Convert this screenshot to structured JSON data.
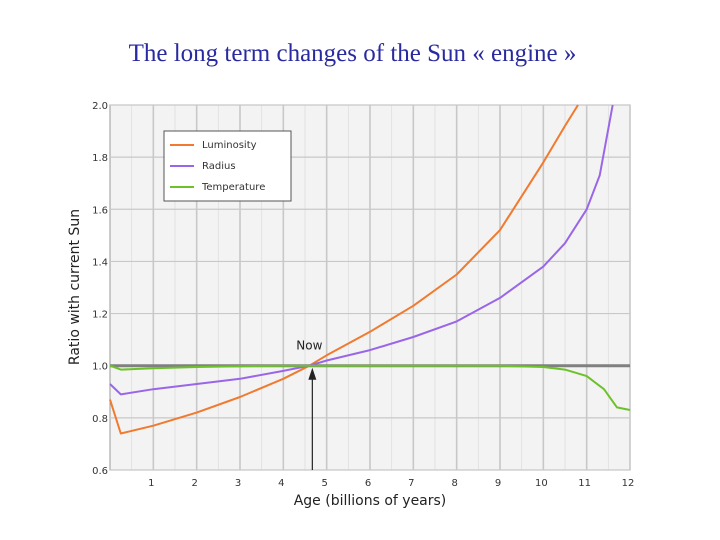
{
  "slide": {
    "title": "The long term changes of the Sun « engine »"
  },
  "chart_data": {
    "type": "line",
    "title": "The long term changes of the Sun « engine »",
    "xlabel": "Age (billions of years)",
    "ylabel": "Ratio with current Sun",
    "xlim": [
      0,
      12
    ],
    "ylim": [
      0.6,
      2.0
    ],
    "x_ticks": [
      1,
      2,
      3,
      4,
      5,
      6,
      7,
      8,
      9,
      10,
      11,
      12
    ],
    "y_ticks": [
      0.6,
      0.8,
      1.0,
      1.2,
      1.4,
      1.6,
      1.8,
      2.0
    ],
    "x_tick_labels": [
      "1",
      "2",
      "3",
      "4",
      "5",
      "6",
      "7",
      "8",
      "9",
      "10",
      "11",
      "12"
    ],
    "y_tick_labels": [
      "0.6",
      "0.8",
      "1.0",
      "1.2",
      "1.4",
      "1.6",
      "1.8",
      "2.0"
    ],
    "grid": true,
    "legend_position": "top-left",
    "reference_line": {
      "y": 1.0,
      "color": "#808080"
    },
    "annotation": {
      "label": "Now",
      "x": 4.6,
      "y": 1.0
    },
    "series": [
      {
        "name": "Luminosity",
        "color": "#f07a30",
        "points": [
          [
            0,
            0.87
          ],
          [
            0.25,
            0.74
          ],
          [
            1,
            0.77
          ],
          [
            2,
            0.82
          ],
          [
            3,
            0.88
          ],
          [
            4,
            0.95
          ],
          [
            4.6,
            1.0
          ],
          [
            5,
            1.04
          ],
          [
            6,
            1.13
          ],
          [
            7,
            1.23
          ],
          [
            8,
            1.35
          ],
          [
            9,
            1.52
          ],
          [
            10,
            1.78
          ],
          [
            10.5,
            1.92
          ],
          [
            10.8,
            2.0
          ]
        ]
      },
      {
        "name": "Radius",
        "color": "#9a66e8",
        "points": [
          [
            0,
            0.93
          ],
          [
            0.25,
            0.89
          ],
          [
            1,
            0.91
          ],
          [
            2,
            0.93
          ],
          [
            3,
            0.95
          ],
          [
            4,
            0.98
          ],
          [
            4.6,
            1.0
          ],
          [
            5,
            1.02
          ],
          [
            6,
            1.06
          ],
          [
            7,
            1.11
          ],
          [
            8,
            1.17
          ],
          [
            9,
            1.26
          ],
          [
            10,
            1.38
          ],
          [
            10.5,
            1.47
          ],
          [
            11,
            1.6
          ],
          [
            11.3,
            1.73
          ],
          [
            11.6,
            2.0
          ]
        ]
      },
      {
        "name": "Temperature",
        "color": "#6cc22a",
        "points": [
          [
            0,
            1.0
          ],
          [
            0.25,
            0.985
          ],
          [
            1,
            0.99
          ],
          [
            2,
            0.995
          ],
          [
            3,
            0.998
          ],
          [
            4,
            1.0
          ],
          [
            5,
            1.0
          ],
          [
            6,
            1.0
          ],
          [
            7,
            1.0
          ],
          [
            8,
            1.0
          ],
          [
            9,
            1.0
          ],
          [
            10,
            0.995
          ],
          [
            10.5,
            0.985
          ],
          [
            11,
            0.96
          ],
          [
            11.4,
            0.91
          ],
          [
            11.7,
            0.84
          ],
          [
            12,
            0.83
          ]
        ]
      }
    ]
  }
}
